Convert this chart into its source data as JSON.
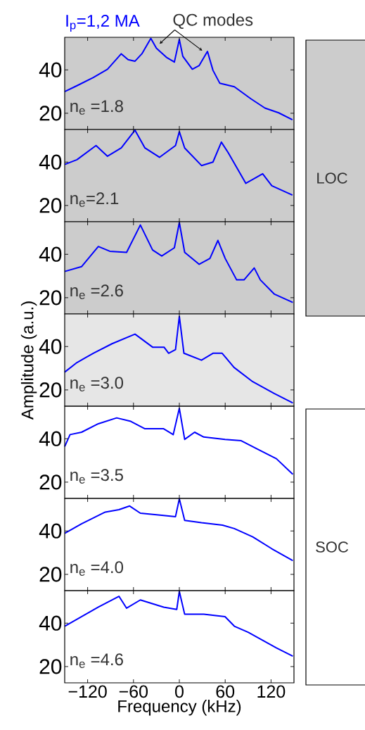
{
  "chart_data": [
    {
      "type": "line",
      "title": "I$_{p}$=1,2 MA",
      "annotations": [
        "n$_{e}$ =1.8",
        "QC modes"
      ],
      "bands": [
        {
          "axis": "x",
          "from": -150,
          "to": 150,
          "color": "#cccccc"
        }
      ],
      "xlim": [
        -150,
        150
      ],
      "ylim": [
        12.5,
        55
      ],
      "xticks": [
        -120,
        -60,
        0,
        60,
        120
      ],
      "yticks": [
        20,
        40
      ],
      "tick_labels": "y",
      "grid": false,
      "marker": "none",
      "line_style": "solid",
      "x": [
        -150,
        -134,
        -112.6,
        -94,
        -76,
        -67,
        -58,
        -49,
        -37.3,
        -30,
        -17,
        -6.5,
        0,
        4.5,
        17,
        26,
        36.8,
        44,
        53,
        72,
        93.5,
        112,
        130,
        148
      ],
      "series": [
        {
          "color": "#0000ff",
          "values": [
            30,
            32.7,
            36.5,
            40.3,
            47.4,
            44.7,
            44,
            47.4,
            54.5,
            50,
            45.8,
            43.6,
            54,
            46.3,
            40.3,
            42,
            48.5,
            39.8,
            33.8,
            32.2,
            26.7,
            22.4,
            20.2,
            17
          ]
        }
      ]
    },
    {
      "type": "line",
      "annotations": [
        "n$_{e}$=2.1",
        "LOC"
      ],
      "bands": [
        {
          "axis": "x",
          "from": -150,
          "to": 150,
          "color": "#cccccc"
        }
      ],
      "xlim": [
        -150,
        150
      ],
      "ylim": [
        12.5,
        55
      ],
      "xticks": [
        -120,
        -60,
        0,
        60,
        120
      ],
      "yticks": [
        20,
        40
      ],
      "tick_labels": "y",
      "grid": false,
      "marker": "none",
      "line_style": "solid",
      "x": [
        -150,
        -134,
        -109,
        -94,
        -76,
        -58,
        -45,
        -26,
        -5,
        0,
        7,
        29,
        44,
        55,
        64,
        87,
        109,
        121,
        148
      ],
      "series": [
        {
          "color": "#0000ff",
          "values": [
            38.9,
            41.1,
            47.6,
            42.7,
            46.5,
            54.7,
            46.5,
            42.2,
            47.6,
            54,
            46.5,
            38.4,
            40,
            49.2,
            44.3,
            30.2,
            34.6,
            29.1,
            24.8
          ]
        }
      ]
    },
    {
      "type": "line",
      "annotations": [
        "n$_{e}$ =2.6"
      ],
      "bands": [
        {
          "axis": "x",
          "from": -150,
          "to": 150,
          "color": "#cccccc"
        }
      ],
      "xlim": [
        -150,
        150
      ],
      "ylim": [
        12.5,
        55
      ],
      "xticks": [
        -120,
        -60,
        0,
        60,
        120
      ],
      "yticks": [
        20,
        40
      ],
      "tick_labels": "y",
      "grid": false,
      "marker": "none",
      "line_style": "solid",
      "x": [
        -150,
        -128,
        -106,
        -91,
        -69,
        -51,
        -35,
        -23,
        -6.5,
        0,
        7,
        26,
        40,
        50.5,
        60,
        75,
        84.6,
        98,
        106,
        124.5,
        148.5
      ],
      "series": [
        {
          "color": "#0000ff",
          "values": [
            32.1,
            34.3,
            43.6,
            41.4,
            40.9,
            53.5,
            42,
            39.2,
            43,
            54.6,
            40.9,
            35.4,
            38.1,
            46.4,
            38.1,
            28.2,
            28.2,
            33.7,
            28.2,
            21.6,
            17.8
          ]
        }
      ]
    },
    {
      "type": "line",
      "ylabel": "Amplitude (a.u.)",
      "annotations": [
        "n$_{e}$ =3.0"
      ],
      "bands": [
        {
          "axis": "x",
          "from": -150,
          "to": 150,
          "color": "#e6e6e6"
        }
      ],
      "xlim": [
        -150,
        150
      ],
      "ylim": [
        12.5,
        55
      ],
      "xticks": [
        -120,
        -60,
        0,
        60,
        120
      ],
      "yticks": [
        20,
        40
      ],
      "tick_labels": "y",
      "grid": false,
      "marker": "none",
      "line_style": "solid",
      "x": [
        -150,
        -134,
        -112.6,
        -88,
        -58,
        -35,
        -20,
        -14,
        -5,
        0,
        6,
        29,
        44,
        56,
        71.5,
        96,
        124,
        148.5
      ],
      "series": [
        {
          "color": "#0000ff",
          "values": [
            28.2,
            32.6,
            36.9,
            41.3,
            45.7,
            39.7,
            39.7,
            36.9,
            38.6,
            53.9,
            36.9,
            33.7,
            36.9,
            36.9,
            30.4,
            23.8,
            18.4,
            14
          ]
        }
      ]
    },
    {
      "type": "line",
      "annotations": [
        "n$_{e}$ =3.5"
      ],
      "xlim": [
        -150,
        150
      ],
      "ylim": [
        12.5,
        55
      ],
      "xticks": [
        -120,
        -60,
        0,
        60,
        120
      ],
      "yticks": [
        20,
        40
      ],
      "tick_labels": "y",
      "grid": false,
      "marker": "none",
      "line_style": "solid",
      "x": [
        -150,
        -143,
        -128,
        -106,
        -82,
        -63.5,
        -45,
        -20.5,
        -8,
        0,
        7,
        20,
        32,
        59.8,
        81,
        102.5,
        127,
        148.5
      ],
      "series": [
        {
          "color": "#0000ff",
          "values": [
            36.4,
            41.9,
            43,
            46.9,
            49.6,
            48,
            44.6,
            44.6,
            41.9,
            54,
            39.7,
            43,
            40.8,
            39.7,
            39.1,
            35.2,
            30.8,
            23.6
          ]
        }
      ]
    },
    {
      "type": "line",
      "annotations": [
        "n$_{e}$ =4.0",
        "SOC"
      ],
      "xlim": [
        -150,
        150
      ],
      "ylim": [
        12.5,
        55
      ],
      "xticks": [
        -120,
        -60,
        0,
        60,
        120
      ],
      "yticks": [
        20,
        40
      ],
      "tick_labels": "y",
      "grid": false,
      "marker": "none",
      "line_style": "solid",
      "x": [
        -150,
        -128,
        -97,
        -79,
        -65,
        -51,
        -20.5,
        -5,
        0,
        7,
        29,
        56.5,
        72,
        96,
        121,
        148.5
      ],
      "series": [
        {
          "color": "#0000ff",
          "values": [
            38.9,
            43.3,
            48.7,
            49.8,
            51.5,
            48.2,
            47.1,
            46.6,
            54.8,
            44.9,
            43.8,
            42.7,
            41.1,
            37.3,
            31.8,
            26.3
          ]
        }
      ]
    },
    {
      "type": "line",
      "xlabel": "Frequency (kHz)",
      "annotations": [
        "n$_{e}$ =4.6"
      ],
      "xlim": [
        -150,
        150
      ],
      "ylim": [
        12.5,
        55
      ],
      "xticks": [
        {
          "value": -120,
          "label": "−120"
        },
        {
          "value": -60,
          "label": "−60"
        },
        0,
        60,
        120
      ],
      "yticks": [
        20,
        40
      ],
      "grid": false,
      "marker": "none",
      "line_style": "solid",
      "x": [
        -150,
        -128,
        -106,
        -79,
        -69,
        -51,
        -20.5,
        -3.4,
        0,
        7,
        32,
        59.8,
        72,
        90,
        127,
        148.5
      ],
      "series": [
        {
          "color": "#0000ff",
          "values": [
            38.6,
            43,
            47.4,
            52.4,
            46.9,
            50.7,
            47.4,
            46.3,
            54.6,
            44.1,
            44.1,
            43,
            38.6,
            35.8,
            28.6,
            24.8
          ]
        }
      ]
    }
  ]
}
